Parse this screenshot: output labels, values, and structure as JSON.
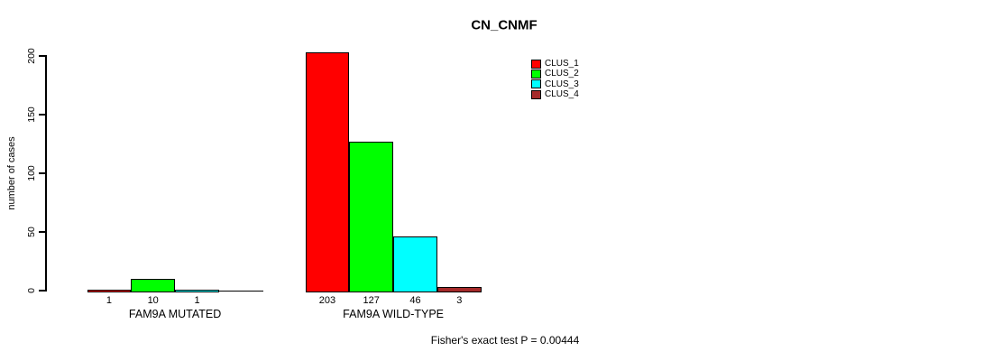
{
  "chart_data": {
    "type": "bar",
    "title": "CN_CNMF",
    "ylabel": "number of cases",
    "ylim": [
      0,
      200
    ],
    "yticks": [
      0,
      50,
      100,
      150,
      200
    ],
    "grid": false,
    "legend_position": "top-right",
    "annotation": "Fisher's exact test P = 0.00444",
    "legend_entries": [
      {
        "label": "CLUS_1",
        "color": "#FF0000"
      },
      {
        "label": "CLUS_2",
        "color": "#00FF00"
      },
      {
        "label": "CLUS_3",
        "color": "#00FFFF"
      },
      {
        "label": "CLUS_4",
        "color": "#A52A2A"
      }
    ],
    "series_colors": [
      "#FF0000",
      "#00FF00",
      "#00FFFF",
      "#A52A2A"
    ],
    "groups": [
      {
        "label": "FAM9A MUTATED",
        "values": [
          1,
          10,
          1,
          0
        ],
        "bar_labels": [
          "1",
          "10",
          "1",
          ""
        ]
      },
      {
        "label": "FAM9A WILD-TYPE",
        "values": [
          203,
          127,
          46,
          3
        ],
        "bar_labels": [
          "203",
          "127",
          "46",
          "3"
        ]
      }
    ]
  }
}
